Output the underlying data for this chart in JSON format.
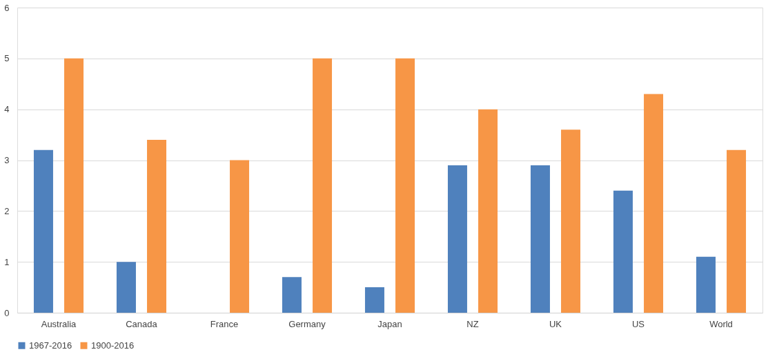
{
  "chart_data": {
    "type": "bar",
    "categories": [
      "Australia",
      "Canada",
      "France",
      "Germany",
      "Japan",
      "NZ",
      "UK",
      "US",
      "World"
    ],
    "series": [
      {
        "name": "1967-2016",
        "color": "#4f81bd",
        "values": [
          3.2,
          1.0,
          null,
          0.7,
          0.5,
          2.9,
          2.9,
          2.4,
          1.1
        ]
      },
      {
        "name": "1900-2016",
        "color": "#f79646",
        "values": [
          5.0,
          3.4,
          3.0,
          5.0,
          5.0,
          4.0,
          3.6,
          4.3,
          3.2
        ]
      }
    ],
    "ylim": [
      0,
      6
    ],
    "yticks": [
      0,
      1,
      2,
      3,
      4,
      5,
      6
    ],
    "grid": "y",
    "legend": "bottom"
  }
}
